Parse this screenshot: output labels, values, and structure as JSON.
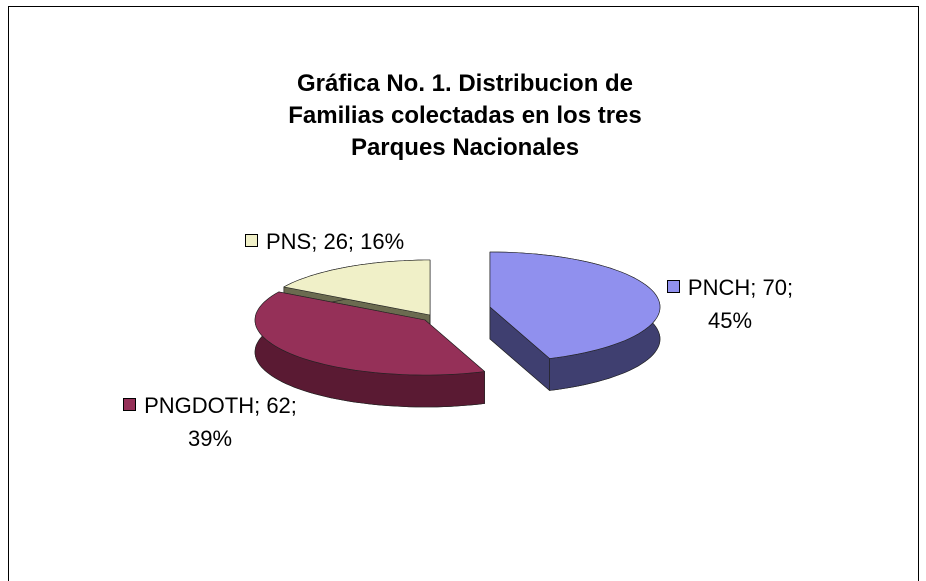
{
  "chart_data": {
    "type": "pie3d",
    "title": "Gráfica No. 1. Distribucion de Familias colectadas en los tres Parques Nacionales",
    "categories": [
      "PNCH",
      "PNGDOTH",
      "PNS"
    ],
    "values": [
      70,
      62,
      26
    ],
    "value_labels": [
      "PNCH; 70; 45%",
      "PNGDOTH; 62; 39%",
      "PNS; 26; 16%"
    ],
    "colors": [
      "#9090ee",
      "#953058",
      "#f0f0c8"
    ],
    "side_colors": [
      "#3f3f70",
      "#5a1a33",
      "#6b6b50"
    ]
  }
}
